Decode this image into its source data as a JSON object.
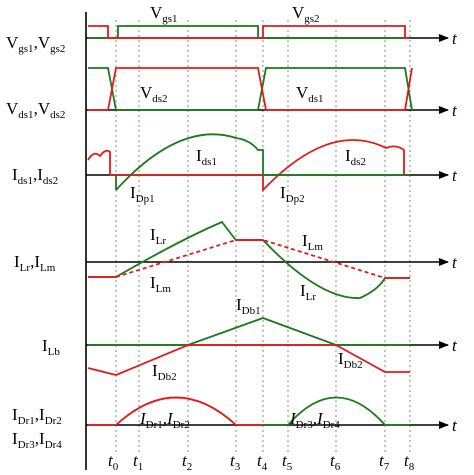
{
  "axis_label": "t",
  "rows": [
    {
      "id": "vgs",
      "axis_text": "V",
      "axis_sub": "gs1",
      "axis_sep": ",V",
      "axis_sub2": "gs2"
    },
    {
      "id": "vds",
      "axis_text": "V",
      "axis_sub": "ds1",
      "axis_sep": ",V",
      "axis_sub2": "ds2"
    },
    {
      "id": "ids",
      "axis_text": "I",
      "axis_sub": "ds1",
      "axis_sep": ",I",
      "axis_sub2": "ds2"
    },
    {
      "id": "ilr",
      "axis_text": "I",
      "axis_sub": "Lr",
      "axis_sep": ",I",
      "axis_sub2": "Lm"
    },
    {
      "id": "ilb",
      "axis_text": "I",
      "axis_sub": "Lb",
      "axis_sep": "",
      "axis_sub2": ""
    },
    {
      "id": "idr",
      "axis_text": "I",
      "axis_sub": "Dr1",
      "axis_sep": ",I",
      "axis_sub2": "Dr2"
    },
    {
      "id": "idr2",
      "axis_text": "I",
      "axis_sub": "Dr3",
      "axis_sep": ",I",
      "axis_sub2": "Dr4"
    }
  ],
  "annotations": {
    "vgs1": {
      "main": "V",
      "sub": "gs1"
    },
    "vgs2": {
      "main": "V",
      "sub": "gs2"
    },
    "vds2": {
      "main": "V",
      "sub": "ds2"
    },
    "vds1": {
      "main": "V",
      "sub": "ds1"
    },
    "ids1": {
      "main": "I",
      "sub": "ds1"
    },
    "ids2": {
      "main": "I",
      "sub": "ds2"
    },
    "idp1": {
      "main": "I",
      "sub": "Dp1"
    },
    "idp2": {
      "main": "I",
      "sub": "Dp2"
    },
    "ilr_a": {
      "main": "I",
      "sub": "Lr"
    },
    "ilm_a": {
      "main": "I",
      "sub": "Lm"
    },
    "ilm_b": {
      "main": "I",
      "sub": "Lm"
    },
    "ilr_b": {
      "main": "I",
      "sub": "Lr"
    },
    "idb1": {
      "main": "I",
      "sub": "Db1"
    },
    "idb2_a": {
      "main": "I",
      "sub": "Db2"
    },
    "idb2_b": {
      "main": "I",
      "sub": "Db2"
    },
    "idr12": {
      "main": "I",
      "sub": "Dr1",
      "sep": ",I",
      "sub2": "Dr2"
    },
    "idr34": {
      "main": "I",
      "sub": "Dr3",
      "sep": ",I",
      "sub2": "Dr4"
    }
  },
  "time_labels": [
    {
      "main": "t",
      "sub": "0"
    },
    {
      "main": "t",
      "sub": "1"
    },
    {
      "main": "t",
      "sub": "2"
    },
    {
      "main": "t",
      "sub": "3"
    },
    {
      "main": "t",
      "sub": "4"
    },
    {
      "main": "t",
      "sub": "5"
    },
    {
      "main": "t",
      "sub": "6"
    },
    {
      "main": "t",
      "sub": "7"
    },
    {
      "main": "t",
      "sub": "8"
    }
  ],
  "colors": {
    "green": "#1a7a1a",
    "red": "#e41a1a"
  }
}
